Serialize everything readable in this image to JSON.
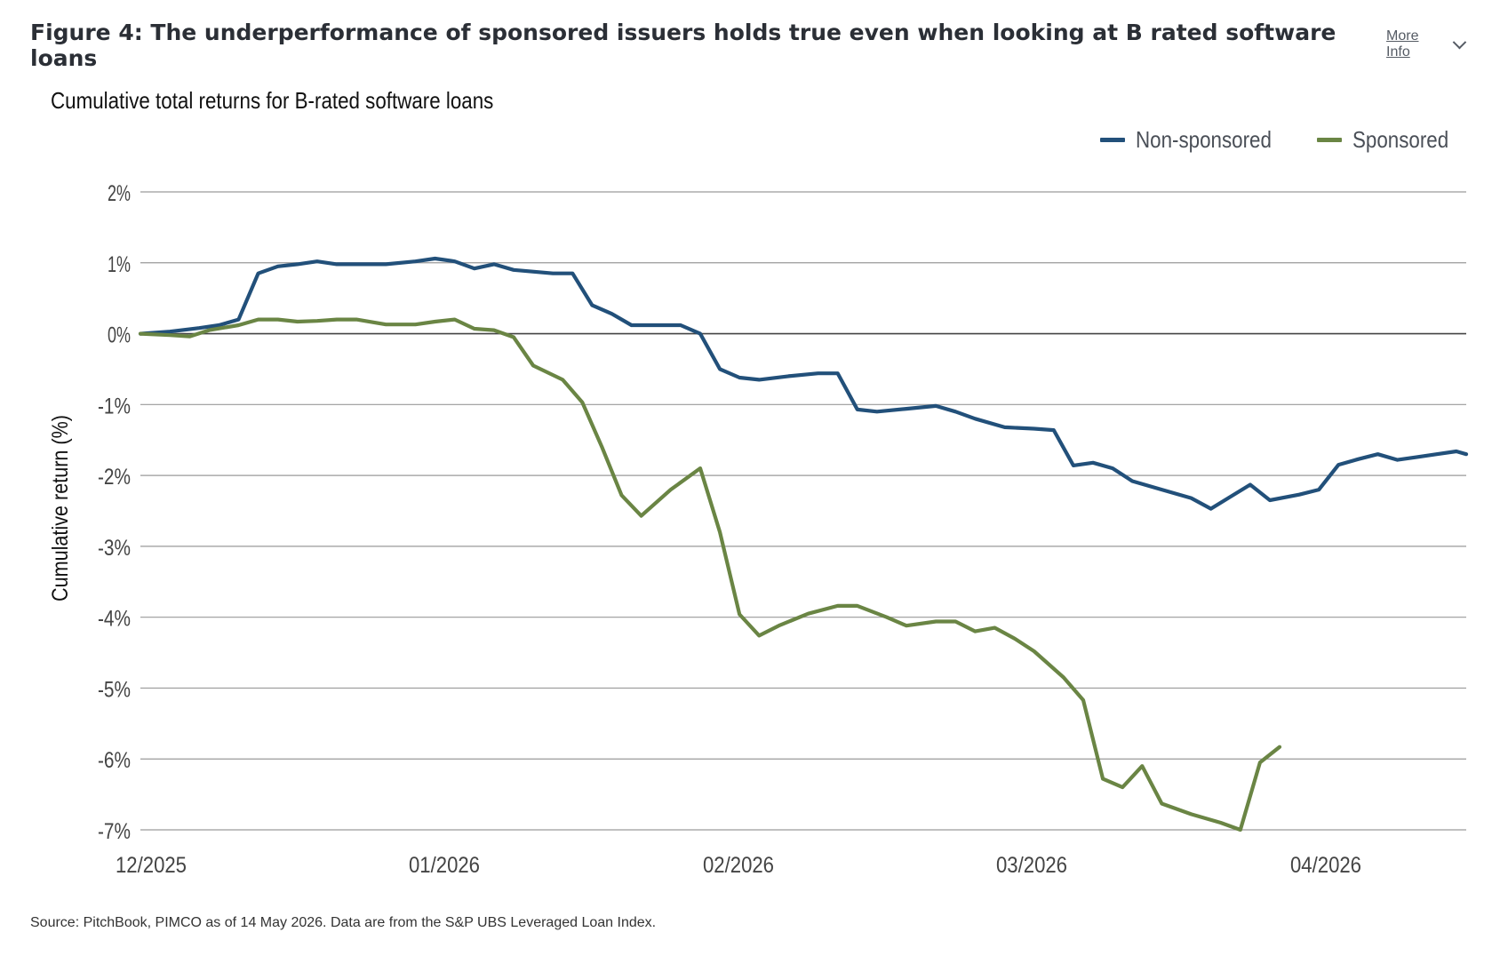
{
  "header": {
    "title": "Figure 4: The underperformance of sponsored issuers holds true even when looking at B rated software loans",
    "more_info_label": "More Info"
  },
  "footer": {
    "source": "Source: PitchBook, PIMCO as of 14 May 2026. Data are from the S&P UBS Leveraged Loan Index."
  },
  "colors": {
    "non_sponsored": "#22507a",
    "sponsored": "#6a8544",
    "gridline": "#9a9a9a",
    "zero_line": "#444444"
  },
  "chart_data": {
    "type": "line",
    "title": "Cumulative total returns for B-rated software loans",
    "xlabel": "",
    "ylabel": "Cumulative return (%)",
    "x_ticks": [
      "12/2025",
      "01/2026",
      "02/2026",
      "03/2026",
      "04/2026"
    ],
    "y_ticks": [
      "2%",
      "1%",
      "0%",
      "-1%",
      "-2%",
      "-3%",
      "-4%",
      "-5%",
      "-6%",
      "-7%"
    ],
    "ylim": [
      -7,
      2
    ],
    "xlim": [
      0,
      135
    ],
    "grid": true,
    "legend_position": "top-right",
    "series": [
      {
        "name": "Non-sponsored",
        "color_key": "non_sponsored",
        "points": [
          [
            0,
            0
          ],
          [
            3,
            0.03
          ],
          [
            6,
            0.08
          ],
          [
            8,
            0.12
          ],
          [
            10,
            0.2
          ],
          [
            12,
            0.85
          ],
          [
            14,
            0.95
          ],
          [
            16,
            0.98
          ],
          [
            18,
            1.02
          ],
          [
            20,
            0.98
          ],
          [
            22,
            0.98
          ],
          [
            25,
            0.98
          ],
          [
            28,
            1.02
          ],
          [
            30,
            1.06
          ],
          [
            32,
            1.02
          ],
          [
            34,
            0.92
          ],
          [
            36,
            0.98
          ],
          [
            38,
            0.9
          ],
          [
            42,
            0.85
          ],
          [
            44,
            0.85
          ],
          [
            46,
            0.4
          ],
          [
            48,
            0.28
          ],
          [
            50,
            0.12
          ],
          [
            53,
            0.12
          ],
          [
            55,
            0.12
          ],
          [
            57,
            0.0
          ],
          [
            59,
            -0.5
          ],
          [
            61,
            -0.62
          ],
          [
            63,
            -0.65
          ],
          [
            66,
            -0.6
          ],
          [
            69,
            -0.56
          ],
          [
            71,
            -0.56
          ],
          [
            73,
            -1.07
          ],
          [
            75,
            -1.1
          ],
          [
            78,
            -1.06
          ],
          [
            81,
            -1.02
          ],
          [
            83,
            -1.1
          ],
          [
            85,
            -1.2
          ],
          [
            88,
            -1.32
          ],
          [
            91,
            -1.34
          ],
          [
            93,
            -1.36
          ],
          [
            95,
            -1.86
          ],
          [
            97,
            -1.82
          ],
          [
            99,
            -1.9
          ],
          [
            101,
            -2.08
          ],
          [
            104,
            -2.2
          ],
          [
            107,
            -2.32
          ],
          [
            109,
            -2.47
          ],
          [
            111,
            -2.3
          ],
          [
            113,
            -2.13
          ],
          [
            115,
            -2.35
          ],
          [
            118,
            -2.27
          ],
          [
            120,
            -2.2
          ],
          [
            122,
            -1.85
          ],
          [
            124,
            -1.77
          ],
          [
            126,
            -1.7
          ],
          [
            128,
            -1.78
          ],
          [
            130,
            -1.74
          ],
          [
            132,
            -1.7
          ],
          [
            134,
            -1.66
          ],
          [
            135,
            -1.7
          ]
        ]
      },
      {
        "name": "Sponsored",
        "color_key": "sponsored",
        "points": [
          [
            0,
            0
          ],
          [
            3,
            -0.02
          ],
          [
            5,
            -0.04
          ],
          [
            7,
            0.05
          ],
          [
            10,
            0.12
          ],
          [
            12,
            0.2
          ],
          [
            14,
            0.2
          ],
          [
            16,
            0.17
          ],
          [
            18,
            0.18
          ],
          [
            20,
            0.2
          ],
          [
            22,
            0.2
          ],
          [
            25,
            0.13
          ],
          [
            28,
            0.13
          ],
          [
            30,
            0.17
          ],
          [
            32,
            0.2
          ],
          [
            34,
            0.07
          ],
          [
            36,
            0.05
          ],
          [
            38,
            -0.05
          ],
          [
            40,
            -0.45
          ],
          [
            43,
            -0.65
          ],
          [
            45,
            -0.97
          ],
          [
            47,
            -1.6
          ],
          [
            49,
            -2.28
          ],
          [
            51,
            -2.57
          ],
          [
            54,
            -2.2
          ],
          [
            57,
            -1.9
          ],
          [
            59,
            -2.8
          ],
          [
            61,
            -3.96
          ],
          [
            63,
            -4.26
          ],
          [
            65,
            -4.12
          ],
          [
            68,
            -3.95
          ],
          [
            71,
            -3.84
          ],
          [
            73,
            -3.84
          ],
          [
            76,
            -4.0
          ],
          [
            78,
            -4.12
          ],
          [
            81,
            -4.06
          ],
          [
            83,
            -4.06
          ],
          [
            85,
            -4.2
          ],
          [
            87,
            -4.15
          ],
          [
            89,
            -4.3
          ],
          [
            91,
            -4.48
          ],
          [
            94,
            -4.85
          ],
          [
            96,
            -5.17
          ],
          [
            98,
            -6.28
          ],
          [
            100,
            -6.4
          ],
          [
            102,
            -6.1
          ],
          [
            104,
            -6.63
          ],
          [
            107,
            -6.78
          ],
          [
            110,
            -6.9
          ],
          [
            112,
            -7.0
          ],
          [
            114,
            -6.05
          ],
          [
            116,
            -5.83
          ]
        ]
      }
    ]
  }
}
